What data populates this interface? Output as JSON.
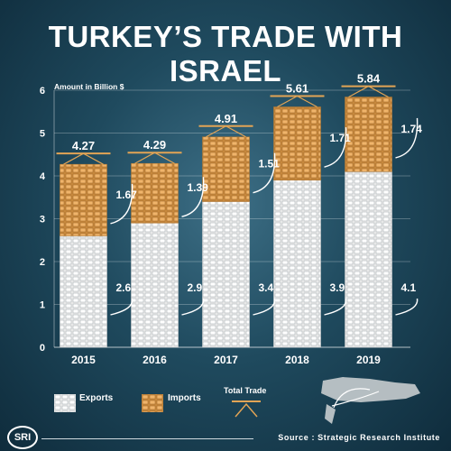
{
  "title": "TURKEY’S TRADE WITH ISRAEL",
  "chart_data": {
    "type": "bar",
    "stacked": true,
    "ylabel": "Amount in Billion $",
    "ylim": [
      0,
      6
    ],
    "yticks": [
      "0",
      "1",
      "2",
      "3",
      "4",
      "5",
      "6"
    ],
    "categories": [
      "2015",
      "2016",
      "2017",
      "2018",
      "2019"
    ],
    "series": [
      {
        "name": "Exports",
        "values": [
          2.6,
          2.9,
          3.4,
          3.9,
          4.1
        ],
        "labels": [
          "2.6",
          "2.9",
          "3.4",
          "3.9",
          "4.1"
        ],
        "color": "#f1f1f1"
      },
      {
        "name": "Imports",
        "values": [
          1.67,
          1.39,
          1.51,
          1.71,
          1.74
        ],
        "labels": [
          "1.67",
          "1.39",
          "1.51",
          "1.71",
          "1.74"
        ],
        "color": "#e2a455"
      }
    ],
    "totals": {
      "name": "Total Trade",
      "values": [
        4.27,
        4.29,
        4.91,
        5.61,
        5.84
      ],
      "labels": [
        "4.27",
        "4.29",
        "4.91",
        "5.61",
        "5.84"
      ]
    },
    "legend_position": "bottom"
  },
  "legend": {
    "exports": "Exports",
    "imports": "Imports",
    "total": "Total Trade"
  },
  "footer": {
    "logo": "SRI",
    "source": "Source : Strategic Research Institute"
  }
}
